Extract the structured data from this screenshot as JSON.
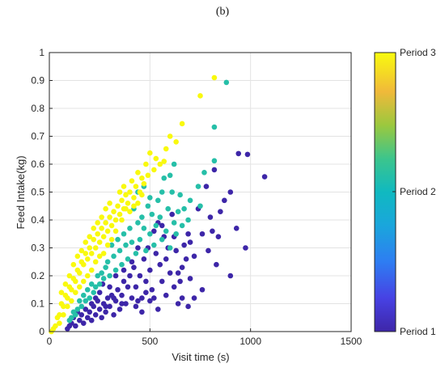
{
  "panel_label": "(b)",
  "chart_data": {
    "type": "scatter",
    "title": "",
    "xlabel": "Visit time  (s)",
    "ylabel": "Feed Intake(kg)",
    "xlim": [
      0,
      1500
    ],
    "ylim": [
      0,
      1
    ],
    "xticks": [
      0,
      500,
      1000,
      1500
    ],
    "yticks": [
      0,
      0.1,
      0.2,
      0.3,
      0.4,
      0.5,
      0.6,
      0.7,
      0.8,
      0.9,
      1
    ],
    "grid": true,
    "colorbar": {
      "labels": [
        "Period 3",
        "Period 2",
        "Period 1"
      ],
      "colormap": "parula",
      "colors": {
        "period1": "#3d26a8",
        "period2": "#26bfa8",
        "period3": "#f9f90e"
      }
    },
    "series": [
      {
        "color": "#3d26a8",
        "points": [
          [
            1070,
            0.555
          ],
          [
            985,
            0.635
          ],
          [
            940,
            0.638
          ],
          [
            975,
            0.3
          ],
          [
            930,
            0.37
          ],
          [
            900,
            0.5
          ],
          [
            870,
            0.47
          ],
          [
            850,
            0.43
          ],
          [
            820,
            0.58
          ],
          [
            800,
            0.41
          ],
          [
            780,
            0.52
          ],
          [
            830,
            0.24
          ],
          [
            840,
            0.34
          ],
          [
            810,
            0.36
          ],
          [
            790,
            0.29
          ],
          [
            760,
            0.35
          ],
          [
            740,
            0.44
          ],
          [
            720,
            0.27
          ],
          [
            700,
            0.32
          ],
          [
            690,
            0.35
          ],
          [
            680,
            0.26
          ],
          [
            670,
            0.31
          ],
          [
            660,
            0.23
          ],
          [
            650,
            0.18
          ],
          [
            640,
            0.21
          ],
          [
            630,
            0.29
          ],
          [
            620,
            0.34
          ],
          [
            610,
            0.42
          ],
          [
            600,
            0.21
          ],
          [
            590,
            0.3
          ],
          [
            580,
            0.26
          ],
          [
            570,
            0.34
          ],
          [
            560,
            0.18
          ],
          [
            550,
            0.24
          ],
          [
            540,
            0.39
          ],
          [
            530,
            0.28
          ],
          [
            520,
            0.36
          ],
          [
            510,
            0.15
          ],
          [
            500,
            0.22
          ],
          [
            490,
            0.3
          ],
          [
            480,
            0.18
          ],
          [
            470,
            0.26
          ],
          [
            460,
            0.12
          ],
          [
            450,
            0.2
          ],
          [
            440,
            0.3
          ],
          [
            430,
            0.16
          ],
          [
            420,
            0.23
          ],
          [
            410,
            0.12
          ],
          [
            400,
            0.2
          ],
          [
            390,
            0.16
          ],
          [
            380,
            0.1
          ],
          [
            370,
            0.18
          ],
          [
            360,
            0.13
          ],
          [
            350,
            0.08
          ],
          [
            340,
            0.15
          ],
          [
            330,
            0.11
          ],
          [
            320,
            0.06
          ],
          [
            310,
            0.13
          ],
          [
            300,
            0.09
          ],
          [
            290,
            0.12
          ],
          [
            280,
            0.07
          ],
          [
            270,
            0.1
          ],
          [
            260,
            0.05
          ],
          [
            250,
            0.08
          ],
          [
            240,
            0.11
          ],
          [
            230,
            0.06
          ],
          [
            220,
            0.09
          ],
          [
            210,
            0.04
          ],
          [
            200,
            0.07
          ],
          [
            190,
            0.05
          ],
          [
            180,
            0.08
          ],
          [
            170,
            0.03
          ],
          [
            160,
            0.06
          ],
          [
            150,
            0.04
          ],
          [
            140,
            0.07
          ],
          [
            130,
            0.02
          ],
          [
            120,
            0.05
          ],
          [
            110,
            0.03
          ],
          [
            100,
            0.02
          ],
          [
            90,
            0.01
          ],
          [
            720,
            0.12
          ],
          [
            690,
            0.09
          ],
          [
            760,
            0.15
          ],
          [
            640,
            0.1
          ],
          [
            580,
            0.13
          ],
          [
            540,
            0.08
          ],
          [
            500,
            0.11
          ],
          [
            460,
            0.07
          ],
          [
            430,
            0.09
          ],
          [
            900,
            0.2
          ],
          [
            620,
            0.16
          ],
          [
            660,
            0.12
          ],
          [
            700,
            0.19
          ],
          [
            520,
            0.12
          ],
          [
            480,
            0.14
          ],
          [
            440,
            0.11
          ],
          [
            360,
            0.1
          ],
          [
            320,
            0.12
          ],
          [
            280,
            0.09
          ],
          [
            250,
            0.14
          ],
          [
            230,
            0.12
          ],
          [
            210,
            0.1
          ],
          [
            265,
            0.17
          ],
          [
            300,
            0.16
          ],
          [
            330,
            0.2
          ],
          [
            410,
            0.25
          ],
          [
            370,
            0.22
          ],
          [
            560,
            0.38
          ]
        ]
      },
      {
        "color": "#26bfa8",
        "points": [
          [
            880,
            0.893
          ],
          [
            820,
            0.733
          ],
          [
            820,
            0.612
          ],
          [
            770,
            0.57
          ],
          [
            750,
            0.45
          ],
          [
            740,
            0.52
          ],
          [
            700,
            0.47
          ],
          [
            690,
            0.4
          ],
          [
            670,
            0.44
          ],
          [
            660,
            0.38
          ],
          [
            650,
            0.49
          ],
          [
            640,
            0.43
          ],
          [
            630,
            0.35
          ],
          [
            620,
            0.39
          ],
          [
            610,
            0.5
          ],
          [
            600,
            0.3
          ],
          [
            590,
            0.44
          ],
          [
            580,
            0.36
          ],
          [
            570,
            0.55
          ],
          [
            560,
            0.33
          ],
          [
            550,
            0.41
          ],
          [
            540,
            0.47
          ],
          [
            530,
            0.38
          ],
          [
            520,
            0.31
          ],
          [
            510,
            0.42
          ],
          [
            500,
            0.35
          ],
          [
            490,
            0.45
          ],
          [
            480,
            0.29
          ],
          [
            470,
            0.37
          ],
          [
            460,
            0.41
          ],
          [
            450,
            0.33
          ],
          [
            440,
            0.39
          ],
          [
            430,
            0.28
          ],
          [
            420,
            0.44
          ],
          [
            410,
            0.32
          ],
          [
            400,
            0.37
          ],
          [
            390,
            0.26
          ],
          [
            380,
            0.31
          ],
          [
            370,
            0.35
          ],
          [
            360,
            0.24
          ],
          [
            350,
            0.29
          ],
          [
            340,
            0.33
          ],
          [
            330,
            0.22
          ],
          [
            320,
            0.27
          ],
          [
            310,
            0.31
          ],
          [
            300,
            0.2
          ],
          [
            290,
            0.25
          ],
          [
            280,
            0.23
          ],
          [
            270,
            0.19
          ],
          [
            260,
            0.21
          ],
          [
            250,
            0.17
          ],
          [
            240,
            0.2
          ],
          [
            230,
            0.16
          ],
          [
            220,
            0.14
          ],
          [
            210,
            0.17
          ],
          [
            200,
            0.12
          ],
          [
            190,
            0.15
          ],
          [
            180,
            0.11
          ],
          [
            170,
            0.13
          ],
          [
            160,
            0.09
          ],
          [
            150,
            0.11
          ],
          [
            140,
            0.08
          ],
          [
            130,
            0.06
          ],
          [
            120,
            0.07
          ],
          [
            110,
            0.05
          ],
          [
            100,
            0.04
          ],
          [
            620,
            0.6
          ],
          [
            600,
            0.56
          ],
          [
            560,
            0.5
          ],
          [
            500,
            0.48
          ],
          [
            470,
            0.52
          ],
          [
            440,
            0.5
          ]
        ]
      },
      {
        "color": "#f9f90e",
        "points": [
          [
            820,
            0.91
          ],
          [
            750,
            0.845
          ],
          [
            660,
            0.745
          ],
          [
            600,
            0.7
          ],
          [
            630,
            0.68
          ],
          [
            580,
            0.655
          ],
          [
            570,
            0.61
          ],
          [
            550,
            0.6
          ],
          [
            530,
            0.62
          ],
          [
            500,
            0.64
          ],
          [
            520,
            0.58
          ],
          [
            490,
            0.56
          ],
          [
            480,
            0.6
          ],
          [
            470,
            0.53
          ],
          [
            460,
            0.55
          ],
          [
            450,
            0.5
          ],
          [
            440,
            0.57
          ],
          [
            430,
            0.52
          ],
          [
            420,
            0.48
          ],
          [
            410,
            0.54
          ],
          [
            400,
            0.5
          ],
          [
            390,
            0.46
          ],
          [
            380,
            0.49
          ],
          [
            370,
            0.44
          ],
          [
            360,
            0.47
          ],
          [
            350,
            0.42
          ],
          [
            340,
            0.45
          ],
          [
            330,
            0.4
          ],
          [
            320,
            0.43
          ],
          [
            310,
            0.38
          ],
          [
            300,
            0.41
          ],
          [
            290,
            0.36
          ],
          [
            280,
            0.39
          ],
          [
            270,
            0.34
          ],
          [
            260,
            0.37
          ],
          [
            250,
            0.32
          ],
          [
            240,
            0.35
          ],
          [
            230,
            0.3
          ],
          [
            220,
            0.33
          ],
          [
            210,
            0.28
          ],
          [
            200,
            0.3
          ],
          [
            190,
            0.26
          ],
          [
            180,
            0.28
          ],
          [
            170,
            0.24
          ],
          [
            160,
            0.25
          ],
          [
            150,
            0.21
          ],
          [
            140,
            0.22
          ],
          [
            130,
            0.18
          ],
          [
            120,
            0.19
          ],
          [
            110,
            0.15
          ],
          [
            100,
            0.16
          ],
          [
            90,
            0.12
          ],
          [
            80,
            0.13
          ],
          [
            70,
            0.09
          ],
          [
            60,
            0.1
          ],
          [
            50,
            0.06
          ],
          [
            40,
            0.05
          ],
          [
            30,
            0.02
          ],
          [
            20,
            0.01
          ],
          [
            10,
            0.0
          ],
          [
            250,
            0.27
          ],
          [
            230,
            0.25
          ],
          [
            210,
            0.22
          ],
          [
            190,
            0.2
          ],
          [
            170,
            0.18
          ],
          [
            150,
            0.16
          ],
          [
            130,
            0.14
          ],
          [
            110,
            0.11
          ],
          [
            90,
            0.09
          ],
          [
            70,
            0.06
          ],
          [
            50,
            0.03
          ],
          [
            330,
            0.36
          ],
          [
            310,
            0.33
          ],
          [
            290,
            0.31
          ],
          [
            270,
            0.28
          ],
          [
            360,
            0.4
          ],
          [
            380,
            0.44
          ],
          [
            400,
            0.43
          ],
          [
            420,
            0.45
          ],
          [
            440,
            0.46
          ],
          [
            460,
            0.49
          ],
          [
            350,
            0.5
          ],
          [
            370,
            0.52
          ],
          [
            300,
            0.46
          ],
          [
            280,
            0.44
          ],
          [
            260,
            0.41
          ],
          [
            240,
            0.39
          ],
          [
            220,
            0.37
          ],
          [
            200,
            0.34
          ],
          [
            180,
            0.32
          ],
          [
            160,
            0.29
          ],
          [
            140,
            0.27
          ],
          [
            120,
            0.24
          ],
          [
            100,
            0.2
          ],
          [
            80,
            0.17
          ],
          [
            60,
            0.14
          ]
        ]
      }
    ]
  }
}
